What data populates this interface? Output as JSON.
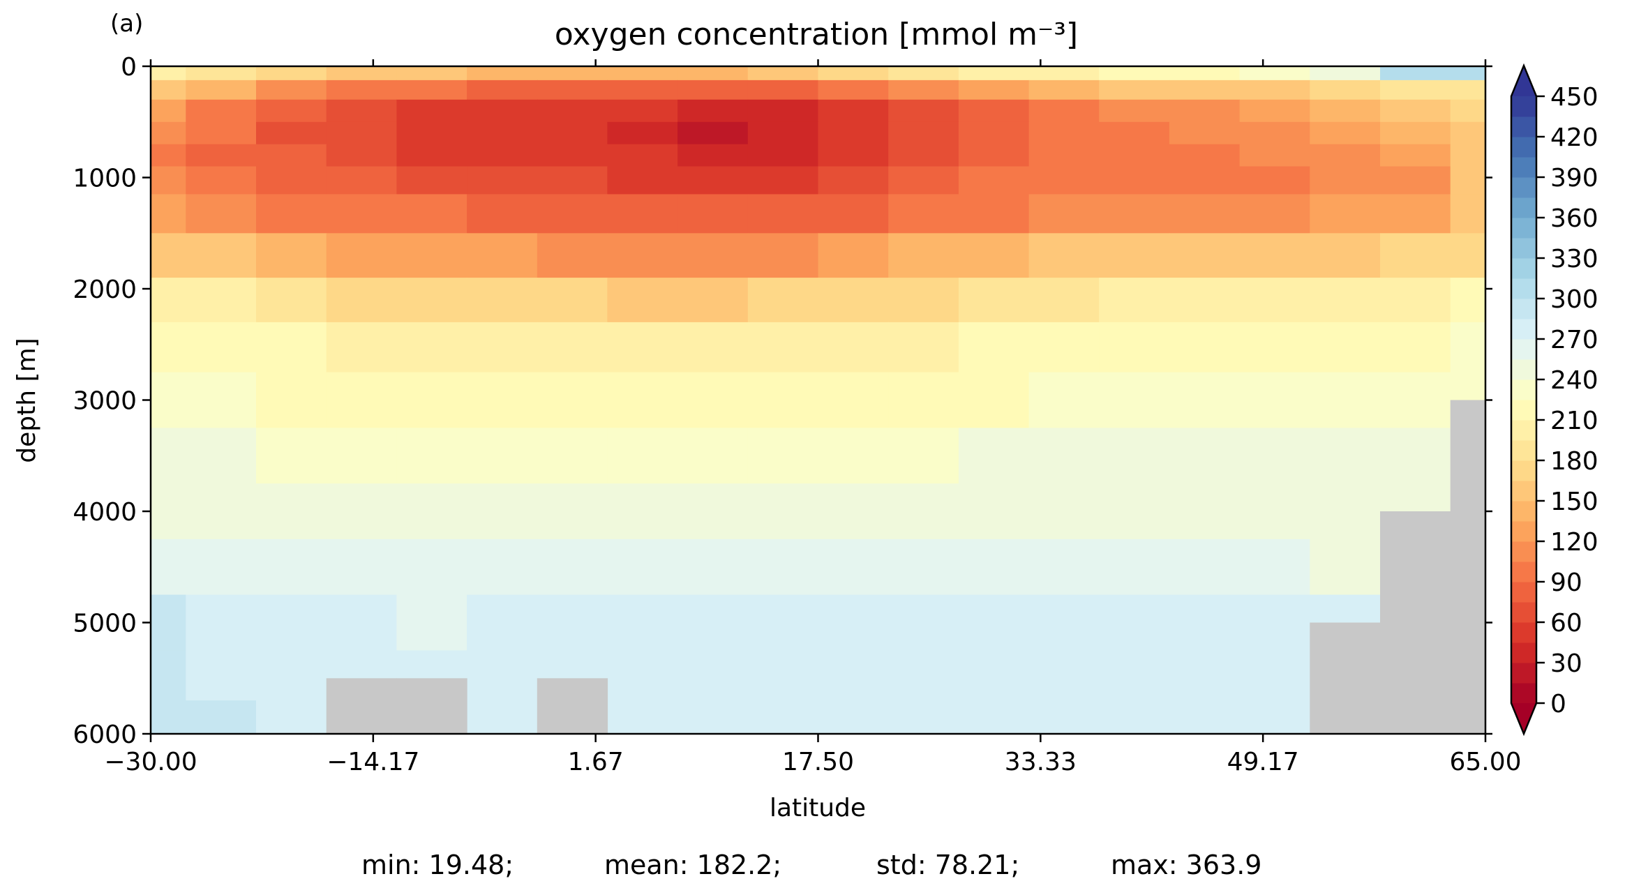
{
  "panel_label": "(a)",
  "chart_data": {
    "type": "heatmap",
    "title": "oxygen concentration [mmol m⁻³]",
    "xlabel": "latitude",
    "ylabel": "depth [m]",
    "xlim": [
      -30,
      65
    ],
    "ylim": [
      6000,
      0
    ],
    "x_ticks": [
      "−30.00",
      "−14.17",
      "1.67",
      "17.50",
      "33.33",
      "49.17",
      "65.00"
    ],
    "y_ticks": [
      "0",
      "1000",
      "2000",
      "3000",
      "4000",
      "5000",
      "6000"
    ],
    "colorbar": {
      "min": 0,
      "max": 450,
      "step": 15,
      "extend": "both",
      "ticks": [
        "0",
        "30",
        "60",
        "90",
        "120",
        "150",
        "180",
        "210",
        "240",
        "270",
        "300",
        "330",
        "360",
        "390",
        "420",
        "450"
      ],
      "colormap": "RdYlBu",
      "stops": [
        "#a50026",
        "#d73027",
        "#f46d43",
        "#fdae61",
        "#fee090",
        "#ffffbf",
        "#e0f3f8",
        "#abd9e9",
        "#74add1",
        "#4575b4",
        "#313695"
      ],
      "land_color": "#c8c8c8"
    },
    "latitudes": [
      -30,
      -25,
      -20,
      -15,
      -10,
      -5,
      0,
      5,
      10,
      15,
      20,
      25,
      30,
      35,
      40,
      45,
      50,
      55,
      60,
      65
    ],
    "depths": [
      50,
      200,
      400,
      600,
      800,
      1000,
      1300,
      1700,
      2100,
      2500,
      3000,
      3500,
      4000,
      4500,
      5000,
      5500,
      5900
    ],
    "values": [
      [
        200,
        190,
        170,
        155,
        150,
        140,
        135,
        135,
        145,
        155,
        165,
        185,
        195,
        205,
        210,
        215,
        225,
        240,
        300,
        305
      ],
      [
        150,
        135,
        110,
        100,
        95,
        85,
        80,
        80,
        80,
        85,
        95,
        115,
        130,
        145,
        150,
        150,
        160,
        170,
        180,
        190
      ],
      [
        120,
        100,
        80,
        68,
        58,
        52,
        48,
        45,
        35,
        40,
        50,
        65,
        85,
        95,
        110,
        115,
        125,
        140,
        155,
        165
      ],
      [
        110,
        90,
        70,
        62,
        55,
        50,
        45,
        42,
        25,
        30,
        45,
        62,
        80,
        92,
        100,
        105,
        115,
        125,
        140,
        160
      ],
      [
        100,
        85,
        75,
        65,
        58,
        55,
        50,
        45,
        30,
        32,
        50,
        68,
        85,
        95,
        100,
        100,
        105,
        110,
        120,
        150
      ],
      [
        105,
        95,
        85,
        78,
        70,
        65,
        60,
        55,
        52,
        55,
        62,
        78,
        90,
        95,
        98,
        100,
        102,
        105,
        110,
        150
      ],
      [
        120,
        110,
        100,
        95,
        90,
        85,
        80,
        78,
        78,
        82,
        88,
        95,
        102,
        108,
        112,
        115,
        118,
        120,
        125,
        160
      ],
      [
        160,
        150,
        140,
        132,
        128,
        122,
        118,
        115,
        112,
        118,
        125,
        135,
        145,
        150,
        152,
        155,
        158,
        160,
        165,
        175
      ],
      [
        205,
        195,
        185,
        178,
        172,
        168,
        165,
        162,
        160,
        165,
        170,
        178,
        185,
        190,
        195,
        197,
        200,
        202,
        205,
        210
      ],
      [
        220,
        215,
        210,
        206,
        202,
        200,
        198,
        197,
        196,
        198,
        200,
        205,
        210,
        213,
        215,
        217,
        219,
        220,
        222,
        225
      ],
      [
        228,
        225,
        222,
        220,
        218,
        216,
        215,
        214,
        214,
        215,
        217,
        220,
        224,
        227,
        229,
        231,
        232,
        233,
        234,
        235
      ],
      [
        240,
        240,
        238,
        236,
        235,
        234,
        233,
        233,
        233,
        234,
        236,
        238,
        241,
        243,
        244,
        245,
        245,
        245,
        245,
        245
      ],
      [
        250,
        249,
        248,
        247,
        246,
        246,
        245,
        245,
        246,
        247,
        248,
        249,
        250,
        251,
        250,
        249,
        248,
        247,
        246,
        245
      ],
      [
        265,
        262,
        259,
        257,
        256,
        257,
        258,
        260,
        262,
        262,
        261,
        260,
        259,
        258,
        257,
        256,
        255,
        254,
        253,
        250
      ],
      [
        285,
        280,
        274,
        270,
        268,
        270,
        273,
        276,
        278,
        277,
        274,
        271,
        270,
        272,
        274,
        275,
        276,
        276,
        276,
        276
      ],
      [
        290,
        284,
        276,
        272,
        270,
        272,
        275,
        278,
        280,
        279,
        276,
        273,
        272,
        274,
        276,
        278,
        279,
        280,
        280,
        280
      ],
      [
        292,
        286,
        278,
        273,
        271,
        273,
        276,
        279,
        281,
        280,
        277,
        274,
        273,
        275,
        277,
        279,
        280,
        281,
        281,
        281
      ]
    ],
    "land_bottom_depth": [
      6000,
      6000,
      6000,
      5500,
      5500,
      6000,
      5500,
      6000,
      6000,
      6000,
      6000,
      6000,
      6000,
      6000,
      6000,
      6000,
      6000,
      5000,
      4000,
      3000
    ],
    "statistics": {
      "min": "min: 19.48;",
      "mean": "mean: 182.2;",
      "std": "std: 78.21;",
      "max": "max: 363.9"
    }
  }
}
